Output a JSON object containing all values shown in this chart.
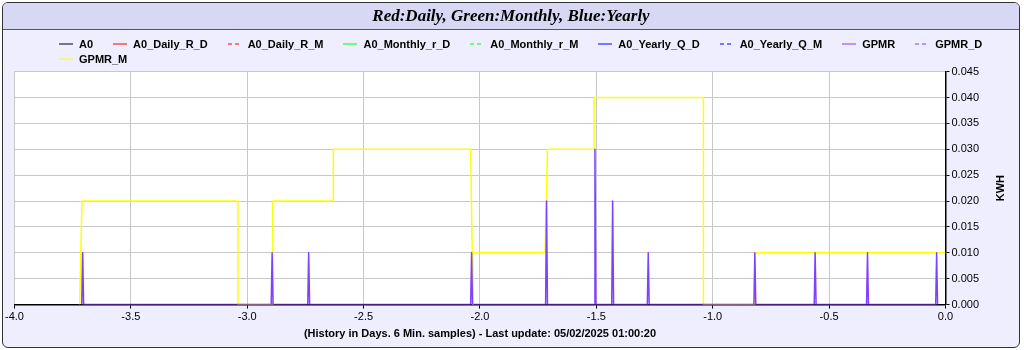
{
  "chart_data": {
    "type": "line",
    "title": "Red:Daily, Green:Monthly, Blue:Yearly",
    "xlabel": "(History in Days. 6 Min. samples) - Last update: 05/02/2025 01:00:20",
    "ylabel": "KWH",
    "xlim": [
      -4,
      0
    ],
    "xticks": [
      {
        "value": -4,
        "label": "-4.0"
      },
      {
        "value": -3.5,
        "label": "-3.5"
      },
      {
        "value": -3,
        "label": "-3.0"
      },
      {
        "value": -2.5,
        "label": "-2.5"
      },
      {
        "value": -2,
        "label": "-2.0"
      },
      {
        "value": -1.5,
        "label": "-1.5"
      },
      {
        "value": -1,
        "label": "-1.0"
      },
      {
        "value": -0.5,
        "label": "-0.5"
      },
      {
        "value": 0,
        "label": "0.0"
      }
    ],
    "ylim": [
      0,
      0.045
    ],
    "yticks": [
      {
        "value": 0,
        "label": "0.000"
      },
      {
        "value": 0.005,
        "label": "0.005"
      },
      {
        "value": 0.01,
        "label": "0.010"
      },
      {
        "value": 0.015,
        "label": "0.015"
      },
      {
        "value": 0.02,
        "label": "0.020"
      },
      {
        "value": 0.025,
        "label": "0.025"
      },
      {
        "value": 0.03,
        "label": "0.030"
      },
      {
        "value": 0.035,
        "label": "0.035"
      },
      {
        "value": 0.04,
        "label": "0.040"
      },
      {
        "value": 0.045,
        "label": "0.045"
      }
    ],
    "grid": true,
    "legend": "top",
    "marker": "none",
    "series": [
      {
        "name": "A0",
        "color": "#000000"
      },
      {
        "name": "A0_Daily_R_D",
        "color": "#ff0000"
      },
      {
        "name": "A0_Daily_R_M",
        "color": "#ff0000",
        "line_style": "dashed"
      },
      {
        "name": "A0_Monthly_r_D",
        "color": "#00ff00"
      },
      {
        "name": "A0_Monthly_r_M",
        "color": "#00ff00",
        "line_style": "dashed"
      },
      {
        "name": "A0_Yearly_Q_D",
        "color": "#0000ff"
      },
      {
        "name": "A0_Yearly_Q_M",
        "color": "#0000ff",
        "line_style": "dashed"
      },
      {
        "name": "GPMR",
        "color": "#8040ff",
        "x": [
          -3.711,
          -3.707,
          -3.703,
          -2.897,
          -2.893,
          -2.889,
          -2.74,
          -2.736,
          -2.732,
          -2.04,
          -2.036,
          -2.032,
          -1.718,
          -1.714,
          -1.71,
          -1.51,
          -1.506,
          -1.502,
          -1.434,
          -1.43,
          -1.426,
          -1.281,
          -1.277,
          -1.273,
          -0.823,
          -0.819,
          -0.815,
          -0.564,
          -0.56,
          -0.556,
          -0.339,
          -0.335,
          -0.331,
          -0.042,
          -0.038,
          -0.034
        ],
        "values": [
          0,
          0.01,
          0,
          0,
          0.01,
          0,
          0,
          0.01,
          0,
          0,
          0.01,
          0,
          0,
          0.02,
          0,
          0,
          0.03,
          0,
          0,
          0.02,
          0,
          0,
          0.01,
          0,
          0,
          0.01,
          0,
          0,
          0.01,
          0,
          0,
          0.01,
          0,
          0,
          0.01,
          0
        ]
      },
      {
        "name": "GPMR_D",
        "color": "#8040ff",
        "line_style": "dashed"
      },
      {
        "name": "GPMR_M",
        "color": "#ffff00",
        "x": [
          -3.72,
          -3.71,
          -3.04,
          -3.04,
          -2.89,
          -2.89,
          -2.63,
          -2.63,
          -2.04,
          -2.03,
          -2.03,
          -1.72,
          -1.71,
          -1.51,
          -1.51,
          -1.04,
          -1.04,
          -0.82,
          -0.82,
          0
        ],
        "values": [
          0,
          0.02,
          0.02,
          0,
          0,
          0.02,
          0.02,
          0.03,
          0.03,
          0,
          0.01,
          0.01,
          0.03,
          0.03,
          0.04,
          0.04,
          0,
          0,
          0.01,
          0.01
        ]
      }
    ]
  }
}
